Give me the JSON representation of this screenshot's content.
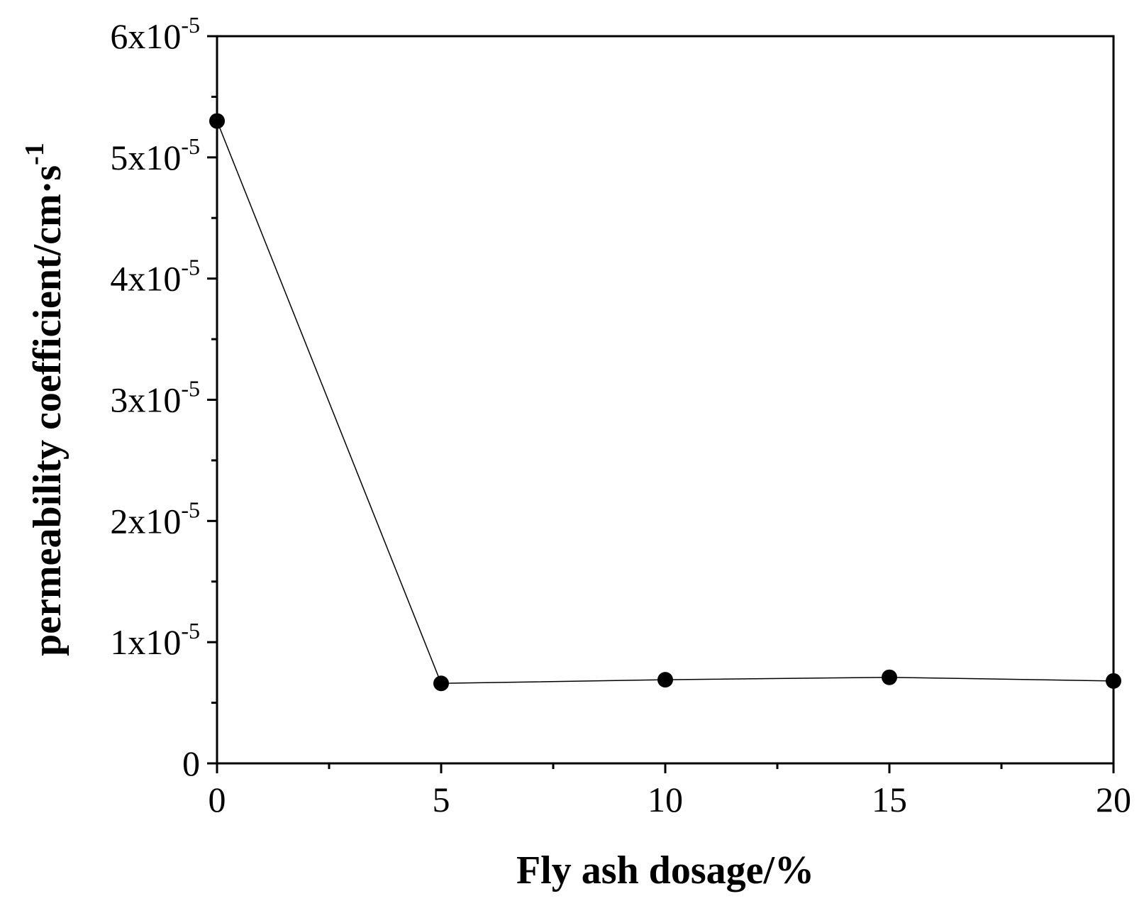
{
  "chart_data": {
    "type": "line",
    "xlabel": "Fly ash dosage/%",
    "ylabel": {
      "base": "permeability coefficient/cm·s",
      "sup": "-1"
    },
    "xlim": [
      0,
      20
    ],
    "ylim": [
      0,
      6e-05
    ],
    "x_ticks": [
      {
        "value": 0,
        "label": "0"
      },
      {
        "value": 5,
        "label": "5"
      },
      {
        "value": 10,
        "label": "10"
      },
      {
        "value": 15,
        "label": "15"
      },
      {
        "value": 20,
        "label": "20"
      }
    ],
    "x_minor_ticks": [
      2.5,
      7.5,
      12.5,
      17.5
    ],
    "y_ticks": [
      {
        "value": 0,
        "label": "0",
        "sup": ""
      },
      {
        "value": 1e-05,
        "label": "1x10",
        "sup": "-5"
      },
      {
        "value": 2e-05,
        "label": "2x10",
        "sup": "-5"
      },
      {
        "value": 3e-05,
        "label": "3x10",
        "sup": "-5"
      },
      {
        "value": 4e-05,
        "label": "4x10",
        "sup": "-5"
      },
      {
        "value": 5e-05,
        "label": "5x10",
        "sup": "-5"
      },
      {
        "value": 6e-05,
        "label": "6x10",
        "sup": "-5"
      }
    ],
    "y_minor_ticks": [
      5e-06,
      1.5e-05,
      2.5e-05,
      3.5e-05,
      4.5e-05,
      5.5e-05
    ],
    "grid": false,
    "legend": "none",
    "series": [
      {
        "x": [
          0,
          5,
          10,
          15,
          20
        ],
        "y": [
          5.3e-05,
          6.6e-06,
          6.9e-06,
          7.1e-06,
          6.8e-06
        ],
        "color": "#000000",
        "marker": "circle-filled"
      }
    ]
  }
}
